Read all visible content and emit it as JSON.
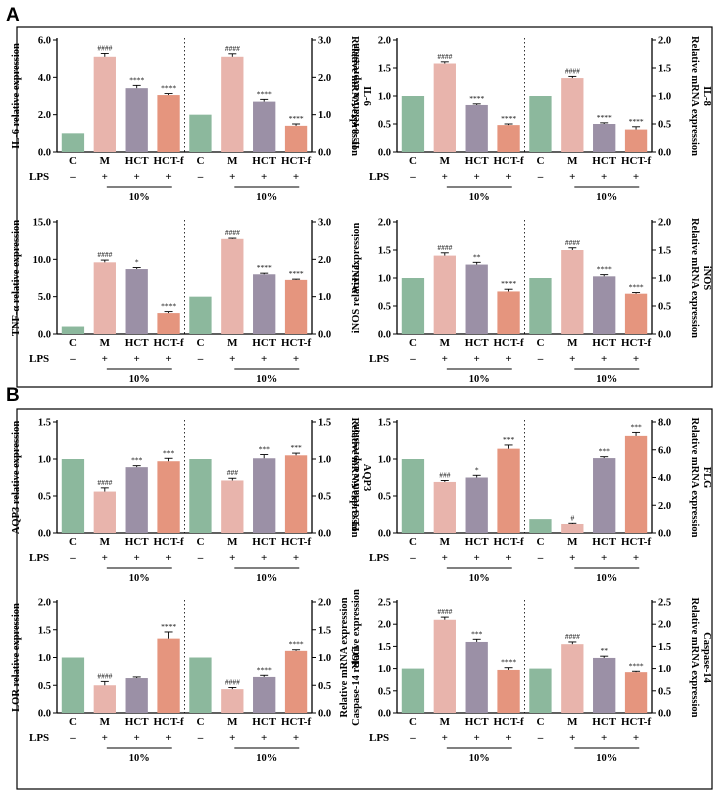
{
  "figure": {
    "panels": [
      {
        "letter": "A"
      },
      {
        "letter": "B"
      }
    ],
    "categories": [
      "C",
      "M",
      "HCT",
      "HCT-f"
    ],
    "lps_label": "LPS",
    "lps_signs": [
      "–",
      "+",
      "+",
      "+"
    ],
    "dose_label": "10%",
    "colors": {
      "C": "#8cb89d",
      "M": "#e8b4ac",
      "HCT": "#9b90a6",
      "HCT-f": "#e5957e"
    }
  },
  "chart_data": [
    {
      "type": "bar",
      "panel": "A",
      "left": {
        "ylabel": "IL-6 relative expression",
        "ylim": [
          0,
          6
        ],
        "ticks": [
          0.0,
          2.0,
          4.0,
          6.0
        ],
        "values": [
          1.0,
          5.1,
          3.42,
          3.05
        ],
        "errors": [
          0,
          0.18,
          0.15,
          0.08
        ],
        "annotations": [
          "",
          "####",
          "****",
          "****"
        ]
      },
      "right": {
        "ylabel": "Relative mRNA expression\nIL-6",
        "ylim": [
          0,
          3
        ],
        "ticks": [
          0.0,
          1.0,
          2.0,
          3.0
        ],
        "values": [
          1.0,
          2.55,
          1.35,
          0.7
        ],
        "errors": [
          0,
          0.08,
          0.06,
          0.05
        ],
        "annotations": [
          "",
          "####",
          "****",
          "****"
        ]
      }
    },
    {
      "type": "bar",
      "panel": "A",
      "left": {
        "ylabel": "IL-8 relative expression",
        "ylim": [
          0,
          2
        ],
        "ticks": [
          0.0,
          0.5,
          1.0,
          1.5,
          2.0
        ],
        "values": [
          1.0,
          1.58,
          0.84,
          0.48
        ],
        "errors": [
          0,
          0.03,
          0.02,
          0.02
        ],
        "annotations": [
          "",
          "####",
          "****",
          "****"
        ]
      },
      "right": {
        "ylabel": "Relative mRNA expression\nIL-8",
        "ylim": [
          0,
          2
        ],
        "ticks": [
          0.0,
          0.5,
          1.0,
          1.5,
          2.0
        ],
        "values": [
          1.0,
          1.32,
          0.5,
          0.4
        ],
        "errors": [
          0,
          0.03,
          0.02,
          0.05
        ],
        "annotations": [
          "",
          "####",
          "****",
          "****"
        ]
      }
    },
    {
      "type": "bar",
      "panel": "A",
      "left": {
        "ylabel": "TNF-α relative expression",
        "ylim": [
          0,
          15
        ],
        "ticks": [
          0.0,
          5.0,
          10.0,
          15.0
        ],
        "values": [
          1.0,
          9.6,
          8.7,
          2.8
        ],
        "errors": [
          0,
          0.3,
          0.2,
          0.2
        ],
        "annotations": [
          "",
          "####",
          "*",
          "****"
        ]
      },
      "right": {
        "ylabel": "TNF-α",
        "ylim": [
          0,
          3
        ],
        "ticks": [
          0.0,
          1.0,
          2.0,
          3.0
        ],
        "values": [
          1.0,
          2.55,
          1.6,
          1.45
        ],
        "errors": [
          0,
          0.02,
          0.03,
          0.02
        ],
        "annotations": [
          "",
          "####",
          "****",
          "****"
        ]
      }
    },
    {
      "type": "bar",
      "panel": "A",
      "left": {
        "ylabel": "iNOS relative expression",
        "ylim": [
          0,
          2
        ],
        "ticks": [
          0.0,
          0.5,
          1.0,
          1.5,
          2.0
        ],
        "values": [
          1.0,
          1.4,
          1.24,
          0.76
        ],
        "errors": [
          0,
          0.05,
          0.04,
          0.04
        ],
        "annotations": [
          "",
          "####",
          "**",
          "****"
        ]
      },
      "right": {
        "ylabel": "Relative mRNA expression\niNOS",
        "ylim": [
          0,
          2
        ],
        "ticks": [
          0.0,
          0.5,
          1.0,
          1.5,
          2.0
        ],
        "values": [
          1.0,
          1.5,
          1.03,
          0.72
        ],
        "errors": [
          0,
          0.04,
          0.03,
          0.02
        ],
        "annotations": [
          "",
          "####",
          "****",
          "****"
        ]
      }
    },
    {
      "type": "bar",
      "panel": "B",
      "left": {
        "ylabel": "AQP3 relative expression",
        "ylim": [
          0,
          1.5
        ],
        "ticks": [
          0.0,
          0.5,
          1.0,
          1.5
        ],
        "values": [
          1.0,
          0.56,
          0.89,
          0.97
        ],
        "errors": [
          0,
          0.05,
          0.02,
          0.04
        ],
        "annotations": [
          "",
          "####",
          "***",
          "***"
        ]
      },
      "right": {
        "ylabel": "Relative mRNA expression\nAQP3",
        "ylim": [
          0,
          1.5
        ],
        "ticks": [
          0.0,
          0.5,
          1.0,
          1.5
        ],
        "values": [
          1.0,
          0.71,
          1.01,
          1.05
        ],
        "errors": [
          0,
          0.03,
          0.05,
          0.03
        ],
        "annotations": [
          "",
          "###",
          "***",
          "***"
        ]
      }
    },
    {
      "type": "bar",
      "panel": "B",
      "left": {
        "ylabel": "FLG relative expression",
        "ylim": [
          0,
          1.5
        ],
        "ticks": [
          0.0,
          0.5,
          1.0,
          1.5
        ],
        "values": [
          1.0,
          0.69,
          0.75,
          1.14
        ],
        "errors": [
          0,
          0.02,
          0.03,
          0.05
        ],
        "annotations": [
          "",
          "###",
          "*",
          "***"
        ]
      },
      "right": {
        "ylabel": "Relative mRNA expression\nFLG",
        "ylim": [
          0,
          8
        ],
        "ticks": [
          0.0,
          2.0,
          4.0,
          6.0,
          8.0
        ],
        "values": [
          1.0,
          0.65,
          5.4,
          7.0
        ],
        "errors": [
          0,
          0.05,
          0.1,
          0.25
        ],
        "annotations": [
          "",
          "#",
          "***",
          "***"
        ]
      }
    },
    {
      "type": "bar",
      "panel": "B",
      "left": {
        "ylabel": "LOR relative expression",
        "ylim": [
          0,
          2
        ],
        "ticks": [
          0.0,
          0.5,
          1.0,
          1.5,
          2.0
        ],
        "values": [
          1.0,
          0.5,
          0.63,
          1.34
        ],
        "errors": [
          0,
          0.07,
          0.02,
          0.12
        ],
        "annotations": [
          "",
          "####",
          "",
          "****"
        ]
      },
      "right": {
        "ylabel": "LOR",
        "ylim": [
          0,
          2
        ],
        "ticks": [
          0.0,
          0.5,
          1.0,
          1.5,
          2.0
        ],
        "values": [
          1.0,
          0.43,
          0.65,
          1.12
        ],
        "errors": [
          0,
          0.03,
          0.03,
          0.02
        ],
        "annotations": [
          "",
          "####",
          "****",
          "****"
        ]
      }
    },
    {
      "type": "bar",
      "panel": "B",
      "left": {
        "ylabel": "Relative mRNA expression\nCaspase-14 relative expression",
        "ylim": [
          0,
          2.5
        ],
        "ticks": [
          0.0,
          0.5,
          1.0,
          1.5,
          2.0,
          2.5
        ],
        "values": [
          1.0,
          2.1,
          1.6,
          0.97
        ],
        "errors": [
          0,
          0.06,
          0.06,
          0.05
        ],
        "annotations": [
          "",
          "####",
          "***",
          "****"
        ]
      },
      "right": {
        "ylabel": "Relative mRNA expression\nCaspase-14",
        "ylim": [
          0,
          2.5
        ],
        "ticks": [
          0.0,
          0.5,
          1.0,
          1.5,
          2.0,
          2.5
        ],
        "values": [
          1.0,
          1.55,
          1.24,
          0.92
        ],
        "errors": [
          0,
          0.05,
          0.04,
          0.02
        ],
        "annotations": [
          "",
          "####",
          "**",
          "****"
        ]
      }
    }
  ]
}
